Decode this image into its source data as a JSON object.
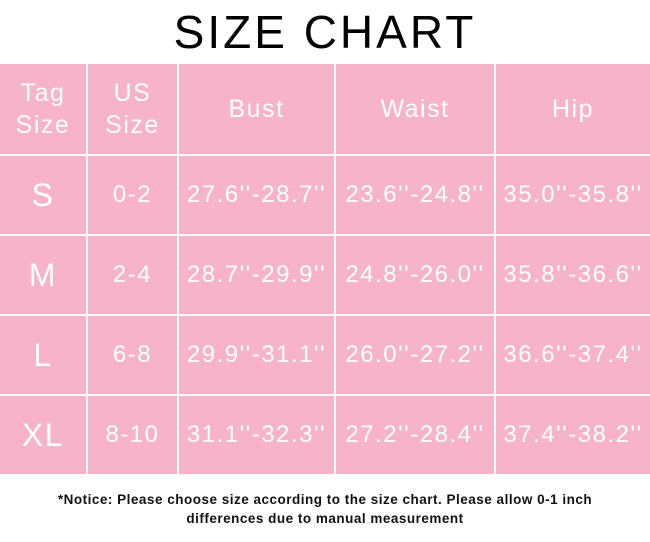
{
  "title": "SIZE CHART",
  "colors": {
    "table_bg": "#f7b4c8",
    "text": "#ffffff"
  },
  "headers": [
    [
      "Tag",
      "Size"
    ],
    [
      "US",
      "Size"
    ],
    [
      "Bust"
    ],
    [
      "Waist"
    ],
    [
      "Hip"
    ]
  ],
  "rows": [
    [
      "S",
      "0-2",
      "27.6''-28.7''",
      "23.6''-24.8''",
      "35.0''-35.8''"
    ],
    [
      "M",
      "2-4",
      "28.7''-29.9''",
      "24.8''-26.0''",
      "35.8''-36.6''"
    ],
    [
      "L",
      "6-8",
      "29.9''-31.1''",
      "26.0''-27.2''",
      "36.6''-37.4''"
    ],
    [
      "XL",
      "8-10",
      "31.1''-32.3''",
      "27.2''-28.4''",
      "37.4''-38.2''"
    ]
  ],
  "notice": [
    "*Notice: Please choose size according to the size chart. Please allow 0-1 inch",
    "differences due to manual measurement"
  ]
}
